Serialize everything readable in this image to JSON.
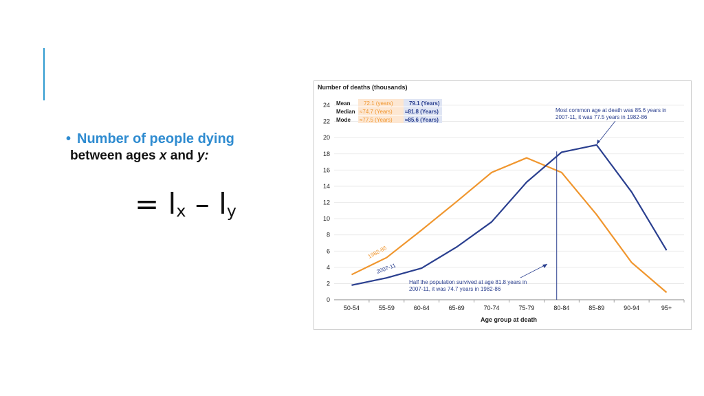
{
  "slide": {
    "bullet_title": "Number of people dying",
    "bullet_body_prefix": "between ages ",
    "bullet_x": "x",
    "bullet_and": " and ",
    "bullet_y": "y",
    "bullet_colon": ":",
    "formula_eq": "= l",
    "formula_sub_x": "x",
    "formula_minus": " – l",
    "formula_sub_y": "y"
  },
  "colors": {
    "accent": "#2e9ad0",
    "series_1982": "#f0962e",
    "series_2007": "#2a3f8f",
    "grid": "#e6e6e6"
  },
  "chart_data": {
    "type": "line",
    "ylabel": "Number of deaths (thousands)",
    "xlabel": "Age group at death",
    "ylim": [
      0,
      24
    ],
    "yticks": [
      0,
      2,
      4,
      6,
      8,
      10,
      12,
      14,
      16,
      18,
      20,
      22,
      24
    ],
    "grid": true,
    "categories": [
      "50-54",
      "55-59",
      "60-64",
      "65-69",
      "70-74",
      "75-79",
      "80-84",
      "85-89",
      "90-94",
      "95+"
    ],
    "series": [
      {
        "name": "1982-86",
        "values": [
          3.1,
          5.2,
          8.6,
          12.1,
          15.7,
          17.5,
          15.7,
          10.5,
          4.6,
          0.9
        ]
      },
      {
        "name": "2007-11",
        "values": [
          1.8,
          2.7,
          3.9,
          6.5,
          9.6,
          14.5,
          18.2,
          19.1,
          13.3,
          6.1
        ]
      }
    ],
    "stats_table": {
      "rows": [
        {
          "label": "Mean",
          "v1982": "72.1 (years)",
          "v2007": "79.1 (Years)"
        },
        {
          "label": "Median",
          "v1982": "≈74.7 (Years)",
          "v2007": "≈81.8 (Years)"
        },
        {
          "label": "Mode",
          "v1982": "≈77.5 (Years)",
          "v2007": "≈85.6 (Years)"
        }
      ]
    },
    "annotations": {
      "mode_note_1": "Most common age at death was 85.6 years in",
      "mode_note_2": "2007-11,  it was 77.5 years in 1982-86",
      "median_note_1": "Half the population survived at age 81.8 years in",
      "median_note_2": "2007-11, it was 74.7 years in 1982-86",
      "median_age": 81.8
    }
  }
}
